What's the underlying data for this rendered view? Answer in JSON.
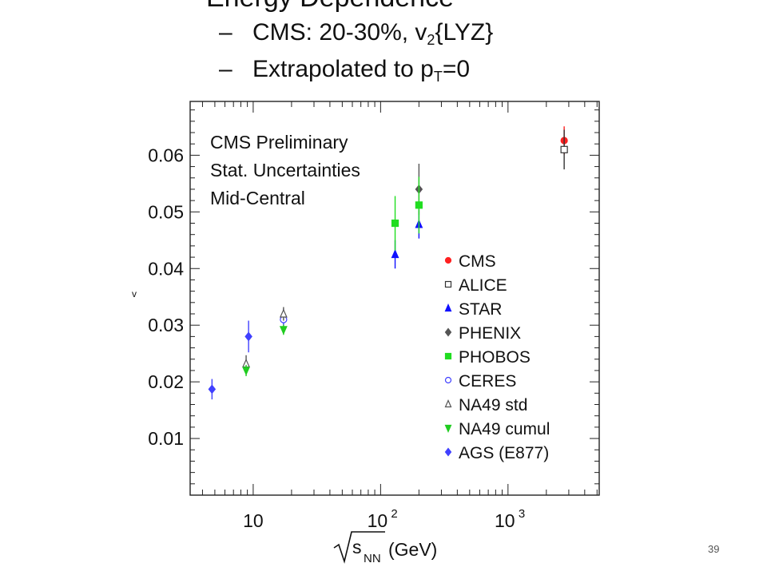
{
  "slide": {
    "title": "Energy Dependence",
    "bullets": [
      {
        "dash": "–",
        "text": "CMS: 20-30%, v",
        "sub": "2",
        "suffix": "{LYZ}"
      },
      {
        "dash": "–",
        "text": "Extrapolated to p",
        "sub": "T",
        "suffix": "=0"
      }
    ],
    "page_number": "39"
  },
  "chart_data": {
    "type": "scatter",
    "x_scale": "log",
    "xlim": [
      3.2,
      5200
    ],
    "ylim": [
      0.0,
      0.0695
    ],
    "x_ticks": [
      {
        "value": 10,
        "base": "10",
        "exp": ""
      },
      {
        "value": 100,
        "base": "10",
        "exp": "2"
      },
      {
        "value": 1000,
        "base": "10",
        "exp": "3"
      }
    ],
    "y_ticks": [
      {
        "value": 0.01,
        "label": "0.01"
      },
      {
        "value": 0.02,
        "label": "0.02"
      },
      {
        "value": 0.03,
        "label": "0.03"
      },
      {
        "value": 0.04,
        "label": "0.04"
      },
      {
        "value": 0.05,
        "label": "0.05"
      },
      {
        "value": 0.06,
        "label": "0.06"
      }
    ],
    "xlabel": {
      "main": "s",
      "sub": "NN",
      "unit": "(GeV)"
    },
    "ylabel": "v",
    "annotations": [
      "CMS  Preliminary",
      "Stat. Uncertainties",
      "Mid-Central"
    ],
    "legend_position": "right",
    "series": [
      {
        "name": "CMS",
        "color": "#ff2020",
        "marker": "circle",
        "filled": true,
        "points": [
          {
            "x": 2760,
            "y": 0.0626,
            "err": 0.0025
          }
        ]
      },
      {
        "name": "ALICE",
        "color": "#333333",
        "marker": "square",
        "filled": false,
        "points": [
          {
            "x": 2760,
            "y": 0.061,
            "err": 0.0035
          }
        ]
      },
      {
        "name": "STAR",
        "color": "#1010ff",
        "marker": "triangle-up",
        "filled": true,
        "points": [
          {
            "x": 130,
            "y": 0.0425,
            "err": 0.0025
          },
          {
            "x": 200,
            "y": 0.0478,
            "err": 0.0025
          }
        ]
      },
      {
        "name": "PHENIX",
        "color": "#555555",
        "marker": "diamond",
        "filled": true,
        "points": [
          {
            "x": 200,
            "y": 0.054,
            "err": 0.0045
          }
        ]
      },
      {
        "name": "PHOBOS",
        "color": "#20dd20",
        "marker": "square",
        "filled": true,
        "points": [
          {
            "x": 130,
            "y": 0.048,
            "err": 0.0048
          },
          {
            "x": 200,
            "y": 0.0512,
            "err": 0.005
          }
        ]
      },
      {
        "name": "CERES",
        "color": "#4040ff",
        "marker": "circle",
        "filled": false,
        "points": [
          {
            "x": 17.3,
            "y": 0.031,
            "err": 0.0018
          }
        ]
      },
      {
        "name": "NA49 std",
        "color": "#555555",
        "marker": "triangle-up",
        "filled": false,
        "points": [
          {
            "x": 8.8,
            "y": 0.0232,
            "err": 0.0015
          },
          {
            "x": 17.3,
            "y": 0.032,
            "err": 0.0012
          }
        ]
      },
      {
        "name": "NA49 cumul",
        "color": "#20cc20",
        "marker": "triangle-down",
        "filled": true,
        "points": [
          {
            "x": 8.8,
            "y": 0.022,
            "err": 0.001
          },
          {
            "x": 17.3,
            "y": 0.0292,
            "err": 0.0009
          }
        ]
      },
      {
        "name": "AGS (E877)",
        "color": "#4040ff",
        "marker": "diamond",
        "filled": true,
        "points": [
          {
            "x": 4.75,
            "y": 0.0187,
            "err": 0.0018
          },
          {
            "x": 9.2,
            "y": 0.028,
            "err": 0.0028
          }
        ]
      }
    ]
  }
}
